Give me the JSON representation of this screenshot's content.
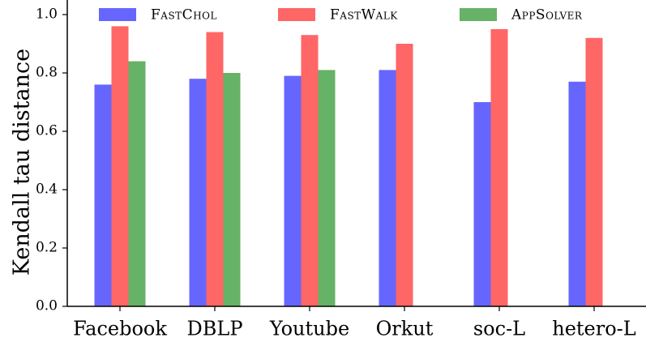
{
  "chart_data": {
    "type": "bar",
    "categories": [
      "Facebook",
      "DBLP",
      "Youtube",
      "Orkut",
      "soc-L",
      "hetero-L"
    ],
    "series": [
      {
        "name": "FastChol",
        "color": "#6666ff",
        "values": [
          0.76,
          0.78,
          0.79,
          0.81,
          0.7,
          0.77
        ]
      },
      {
        "name": "FastWalk",
        "color": "#ff6666",
        "values": [
          0.96,
          0.94,
          0.93,
          0.9,
          0.95,
          0.92
        ]
      },
      {
        "name": "AppSolver",
        "color": "#66b266",
        "values": [
          0.84,
          0.8,
          0.81,
          null,
          null,
          null
        ]
      }
    ],
    "ylabel": "Kendall tau distance",
    "xlabel": "",
    "ylim": [
      0.0,
      1.0
    ],
    "yticks": [
      "0.0",
      "0.2",
      "0.4",
      "0.6",
      "0.8",
      "1.0"
    ],
    "grid": false,
    "legend_position": "top"
  }
}
